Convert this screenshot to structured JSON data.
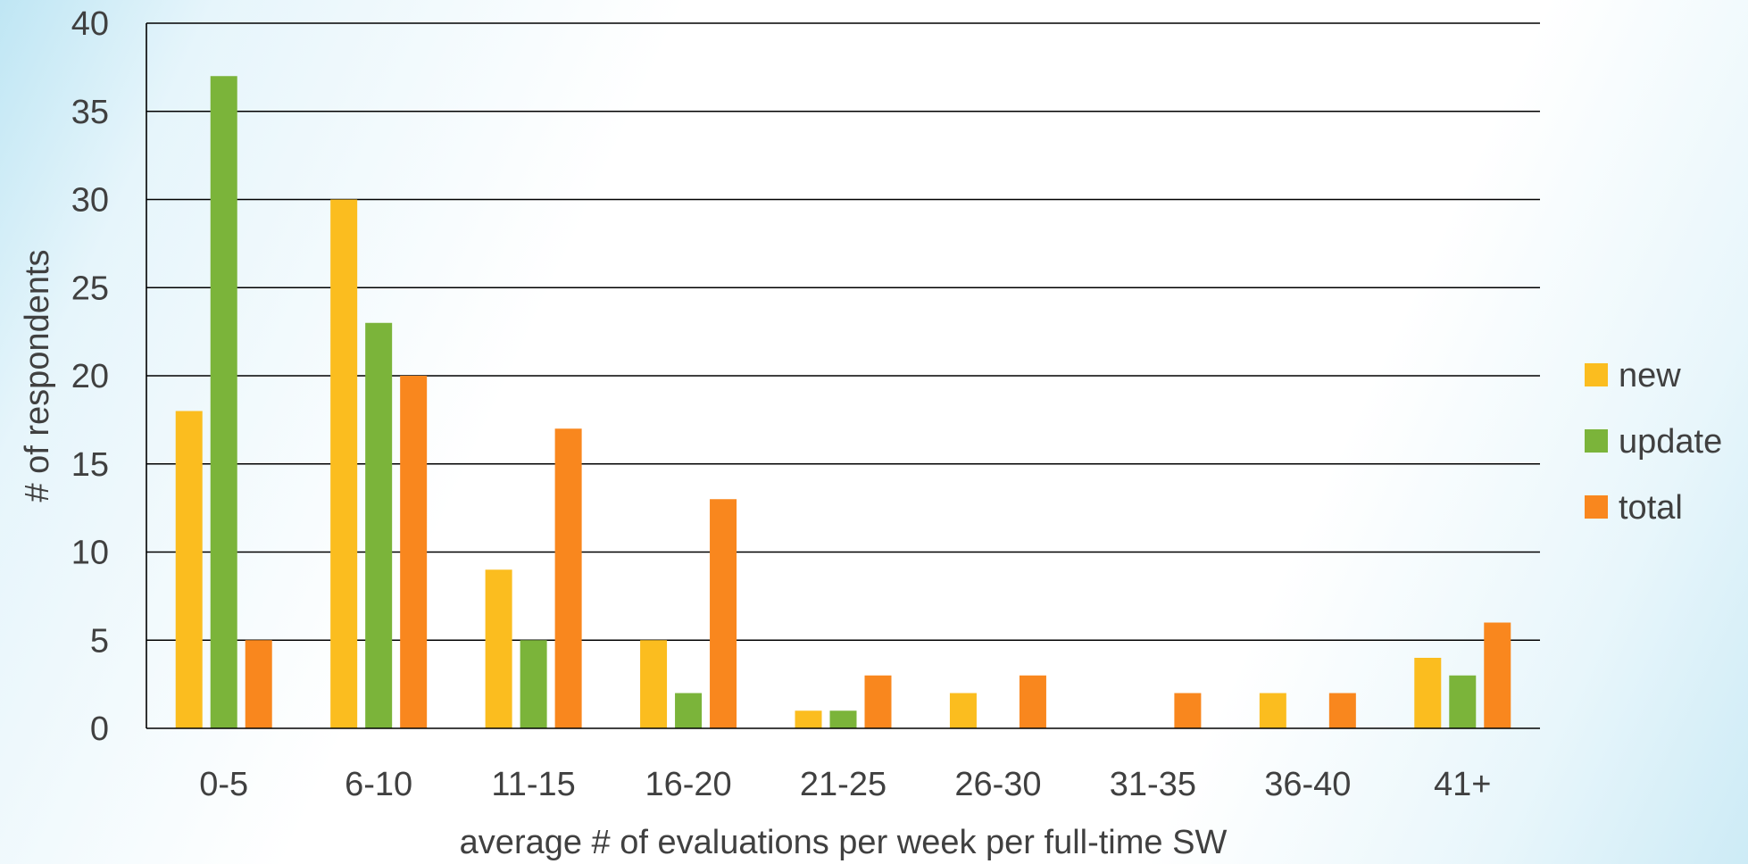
{
  "chart_data": {
    "type": "bar",
    "title": "",
    "xlabel": "average # of evaluations per week per full-time SW",
    "ylabel": "# of respondents",
    "categories": [
      "0-5",
      "6-10",
      "11-15",
      "16-20",
      "21-25",
      "26-30",
      "31-35",
      "36-40",
      "41+"
    ],
    "series": [
      {
        "name": "new",
        "color": "#FBBD1F",
        "values": [
          18,
          30,
          9,
          5,
          1,
          2,
          0,
          2,
          4
        ]
      },
      {
        "name": "update",
        "color": "#7BB43A",
        "values": [
          37,
          23,
          5,
          2,
          1,
          0,
          0,
          0,
          3
        ]
      },
      {
        "name": "total",
        "color": "#F9871E",
        "values": [
          5,
          20,
          17,
          13,
          3,
          3,
          2,
          2,
          6
        ]
      }
    ],
    "ylim": [
      0,
      40
    ],
    "yticks": [
      0,
      5,
      10,
      15,
      20,
      25,
      30,
      35,
      40
    ],
    "grid": true,
    "legend_position": "right"
  }
}
